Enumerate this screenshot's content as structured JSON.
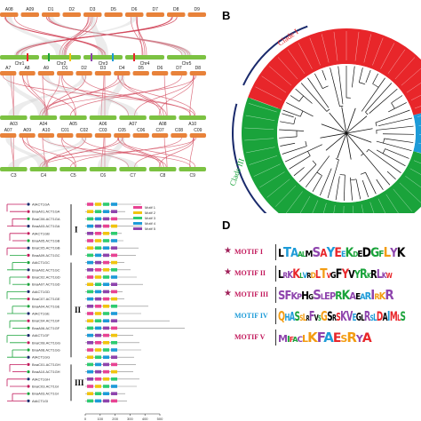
{
  "panels": {
    "b_label": "B",
    "d_label": "D"
  },
  "panelA": {
    "row1_top": [
      "A08",
      "A09",
      "D1",
      "D2",
      "D3",
      "D5",
      "D6",
      "D7",
      "D8",
      "D9"
    ],
    "row2_top": [
      "A7",
      "A8",
      "A9",
      "D1",
      "D2",
      "D3",
      "D4",
      "D5",
      "D6",
      "D7",
      "D8"
    ],
    "row2_bottom": [
      "A03",
      "A04",
      "A05",
      "A06",
      "A07",
      "A08",
      "A10"
    ],
    "row3_top": [
      "A07",
      "A09",
      "A10",
      "C01",
      "C02",
      "C03",
      "C05",
      "C06",
      "C07",
      "C08",
      "C09"
    ],
    "row3_bottom": [
      "C3",
      "C4",
      "C5",
      "C6",
      "C7",
      "C8",
      "C9"
    ],
    "mid_labels": [
      "Chr1",
      "Chr2",
      "Chr3",
      "Chr4",
      "Chr5"
    ]
  },
  "panelB": {
    "clade_i": "Clade I",
    "clade_iii": "Clade III",
    "colors": {
      "red": "#e8262a",
      "green": "#1aa33b",
      "blue": "#1d9bd8"
    }
  },
  "panelC": {
    "groups": [
      "I",
      "II",
      "III"
    ],
    "legend": [
      "Motif 1",
      "Motif 2",
      "Motif 3",
      "Motif 4",
      "Motif 5"
    ],
    "axis_ticks": [
      "0",
      "100",
      "200",
      "300",
      "400",
      "500"
    ],
    "genes": [
      "AtACT1GA",
      "BnaA01.ACT1GA",
      "BnaC06.ACT1GA",
      "BnaA03.ACT1GA",
      "AtACT1GB",
      "BnaA05.ACT1GB",
      "BnaC05.ACT1GB",
      "BnaA09.ACT1GC",
      "AtACT1GC",
      "BnaA02.ACT1GC",
      "BnaC02.ACT1GD",
      "BnaA07.ACT1GD",
      "AtACT1GD",
      "BnaC07.ACT1GE",
      "BnaA04.ACT1GE",
      "AtACT1GE",
      "BnaC04.ACT1GF",
      "BnaA06.ACT1GF",
      "AtACT1GF",
      "BnaC08.ACT1GG",
      "BnaA08.ACT1GG",
      "AtACT1GG",
      "BnaC01.ACT1GH",
      "BnaA10.ACT1GH",
      "AtACT1GH",
      "BnaC03.ACT1GI",
      "BnaA03.ACT1GI",
      "AtACT1GI"
    ]
  },
  "panelD": {
    "motifs": [
      {
        "label": "MOTIF I",
        "starred": true,
        "color": "#c2185b",
        "seq": "LTAALMSAYEEKDEDGFLYK"
      },
      {
        "label": "MOTIF II",
        "starred": true,
        "color": "#c2185b",
        "seq": "LRKKLVRDLTVGFYVYRKRLKW"
      },
      {
        "label": "MOTIF III",
        "starred": true,
        "color": "#c2185b",
        "seq": "SFKPHGSLEPRKAEARIRKR"
      },
      {
        "label": "MOTIF IV",
        "starred": false,
        "color": "#1d9bd8",
        "seq": "QHASSLRFVSGSRSKVEGLRSLDAIMLS"
      },
      {
        "label": "MOTIF V",
        "starred": false,
        "color": "#c2185b",
        "seq": "MIFACLKFAESRYA"
      }
    ]
  }
}
